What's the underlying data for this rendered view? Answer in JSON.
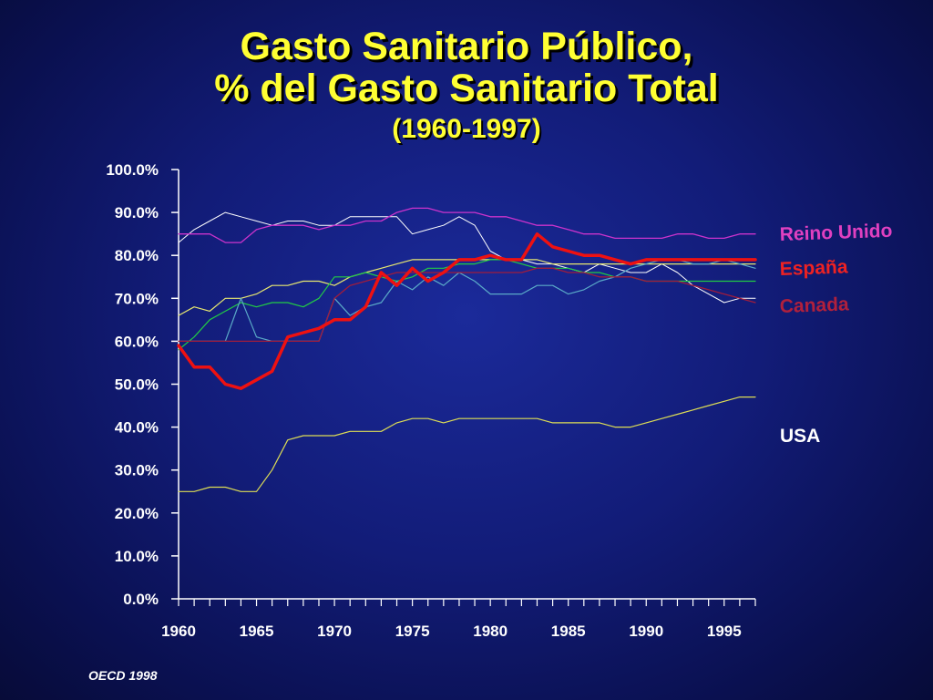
{
  "title": {
    "line1": "Gasto Sanitario Público,",
    "line2": "% del Gasto Sanitario Total",
    "subtitle": "(1960-1997)"
  },
  "source": "OECD 1998",
  "chart_data": {
    "type": "line",
    "x": [
      1960,
      1961,
      1962,
      1963,
      1964,
      1965,
      1966,
      1967,
      1968,
      1969,
      1970,
      1971,
      1972,
      1973,
      1974,
      1975,
      1976,
      1977,
      1978,
      1979,
      1980,
      1981,
      1982,
      1983,
      1984,
      1985,
      1986,
      1987,
      1988,
      1989,
      1990,
      1991,
      1992,
      1993,
      1994,
      1995,
      1996,
      1997
    ],
    "ylim": [
      0,
      100
    ],
    "yticks": [
      "0.0%",
      "10.0%",
      "20.0%",
      "30.0%",
      "40.0%",
      "50.0%",
      "60.0%",
      "70.0%",
      "80.0%",
      "90.0%",
      "100.0%"
    ],
    "xticks": [
      "1960",
      "1965",
      "1970",
      "1975",
      "1980",
      "1985",
      "1990",
      "1995"
    ],
    "grid": false,
    "legend": "right",
    "series": [
      {
        "name": "",
        "color": "#ffffff",
        "width": 1,
        "values": [
          83,
          86,
          88,
          90,
          89,
          88,
          87,
          88,
          88,
          87,
          87,
          89,
          89,
          89,
          89,
          85,
          86,
          87,
          89,
          87,
          81,
          79,
          79,
          78,
          78,
          77,
          76,
          78,
          77,
          76,
          76,
          78,
          76,
          73,
          71,
          69,
          70,
          70
        ]
      },
      {
        "name": "",
        "color": "#e8e870",
        "width": 1.2,
        "values": [
          66,
          68,
          67,
          70,
          70,
          71,
          73,
          73,
          74,
          74,
          73,
          75,
          76,
          77,
          78,
          79,
          79,
          79,
          79,
          79,
          79,
          79,
          79,
          79,
          78,
          78,
          78,
          78,
          78,
          78,
          78,
          78,
          78,
          78,
          78,
          78,
          78,
          78
        ]
      },
      {
        "name": "",
        "color": "#22cc44",
        "width": 1.2,
        "values": [
          58,
          61,
          65,
          67,
          69,
          68,
          69,
          69,
          68,
          70,
          75,
          75,
          76,
          75,
          74,
          75,
          77,
          77,
          78,
          78,
          79,
          79,
          78,
          77,
          77,
          77,
          76,
          76,
          75,
          75,
          74,
          74,
          74,
          74,
          74,
          74,
          74,
          74
        ]
      },
      {
        "name": "",
        "color": "#5aaac8",
        "width": 1.2,
        "values": [
          60,
          60,
          60,
          60,
          70,
          61,
          60,
          60,
          60,
          60,
          70,
          66,
          68,
          69,
          74,
          72,
          75,
          73,
          76,
          74,
          71,
          71,
          71,
          73,
          73,
          71,
          72,
          74,
          75,
          77,
          78,
          79,
          79,
          78,
          78,
          79,
          78,
          77
        ]
      },
      {
        "name": "Reino Unido",
        "color": "#cc33cc",
        "width": 1.3,
        "label_color": "#e040c0",
        "values": [
          85,
          85,
          85,
          83,
          83,
          86,
          87,
          87,
          87,
          86,
          87,
          87,
          88,
          88,
          90,
          91,
          91,
          90,
          90,
          90,
          89,
          89,
          88,
          87,
          87,
          86,
          85,
          85,
          84,
          84,
          84,
          84,
          85,
          85,
          84,
          84,
          85,
          85
        ]
      },
      {
        "name": "Canada",
        "color": "#a01c3c",
        "width": 1.3,
        "label_color": "#b0203c",
        "values": [
          60,
          60,
          60,
          60,
          60,
          60,
          60,
          60,
          60,
          60,
          70,
          73,
          74,
          75,
          76,
          76,
          76,
          76,
          76,
          76,
          76,
          76,
          76,
          77,
          77,
          76,
          76,
          75,
          75,
          75,
          74,
          74,
          74,
          73,
          72,
          71,
          70,
          69
        ]
      },
      {
        "name": "USA",
        "color": "#dddd55",
        "width": 1.2,
        "label_color": "#ffffff",
        "values": [
          25,
          25,
          26,
          26,
          25,
          25,
          30,
          37,
          38,
          38,
          38,
          39,
          39,
          39,
          41,
          42,
          42,
          41,
          42,
          42,
          42,
          42,
          42,
          42,
          41,
          41,
          41,
          41,
          40,
          40,
          41,
          42,
          43,
          44,
          45,
          46,
          47,
          47
        ]
      },
      {
        "name": "España",
        "color": "#ee1111",
        "width": 3.5,
        "label_color": "#ee2222",
        "values": [
          59,
          54,
          54,
          50,
          49,
          51,
          53,
          61,
          62,
          63,
          65,
          65,
          68,
          76,
          73,
          77,
          74,
          76,
          79,
          79,
          80,
          79,
          79,
          85,
          82,
          81,
          80,
          80,
          79,
          78,
          79,
          79,
          79,
          79,
          79,
          79,
          79,
          79
        ]
      }
    ]
  }
}
